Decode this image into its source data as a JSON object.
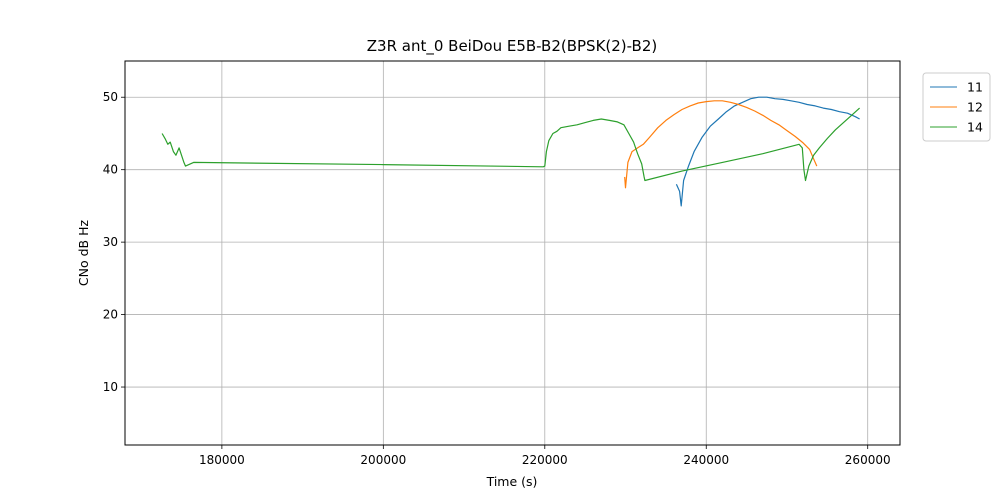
{
  "chart_data": {
    "type": "line",
    "title": "Z3R ant_0 BeiDou E5B-B2(BPSK(2)-B2)",
    "xlabel": "Time (s)",
    "ylabel": "CNo dB Hz",
    "xlim": [
      168000,
      264000
    ],
    "ylim": [
      2,
      55
    ],
    "xticks": [
      180000,
      200000,
      220000,
      240000,
      260000
    ],
    "yticks": [
      10,
      20,
      30,
      40,
      50
    ],
    "grid": true,
    "legend_position": "outside-top-right",
    "series": [
      {
        "name": "11",
        "color": "#1f77b4",
        "points": [
          [
            236300,
            38.0
          ],
          [
            236700,
            37.0
          ],
          [
            236900,
            35.0
          ],
          [
            237200,
            38.5
          ],
          [
            237800,
            40.5
          ],
          [
            238500,
            42.5
          ],
          [
            239500,
            44.5
          ],
          [
            240500,
            46.0
          ],
          [
            241500,
            47.0
          ],
          [
            242500,
            48.0
          ],
          [
            243500,
            48.8
          ],
          [
            244500,
            49.3
          ],
          [
            245500,
            49.8
          ],
          [
            246500,
            50.0
          ],
          [
            247500,
            50.0
          ],
          [
            248500,
            49.8
          ],
          [
            249500,
            49.7
          ],
          [
            250500,
            49.5
          ],
          [
            251500,
            49.3
          ],
          [
            252500,
            49.0
          ],
          [
            253500,
            48.8
          ],
          [
            254500,
            48.5
          ],
          [
            255500,
            48.3
          ],
          [
            256500,
            48.0
          ],
          [
            257500,
            47.8
          ],
          [
            258500,
            47.3
          ],
          [
            259000,
            47.0
          ]
        ]
      },
      {
        "name": "12",
        "color": "#ff7f0e",
        "points": [
          [
            229900,
            39.0
          ],
          [
            230000,
            37.5
          ],
          [
            230300,
            41.0
          ],
          [
            230800,
            42.5
          ],
          [
            231500,
            43.0
          ],
          [
            232200,
            43.5
          ],
          [
            233000,
            44.5
          ],
          [
            234000,
            45.8
          ],
          [
            235000,
            46.8
          ],
          [
            236000,
            47.6
          ],
          [
            237000,
            48.3
          ],
          [
            238000,
            48.8
          ],
          [
            239000,
            49.2
          ],
          [
            240000,
            49.4
          ],
          [
            241000,
            49.5
          ],
          [
            242000,
            49.5
          ],
          [
            243000,
            49.3
          ],
          [
            244000,
            49.0
          ],
          [
            245000,
            48.6
          ],
          [
            246000,
            48.1
          ],
          [
            247000,
            47.5
          ],
          [
            248000,
            46.8
          ],
          [
            249000,
            46.2
          ],
          [
            250000,
            45.4
          ],
          [
            251000,
            44.6
          ],
          [
            252000,
            43.7
          ],
          [
            252800,
            42.8
          ],
          [
            253300,
            41.5
          ],
          [
            253700,
            40.5
          ]
        ]
      },
      {
        "name": "14",
        "color": "#2ca02c",
        "points": [
          [
            172600,
            45.0
          ],
          [
            173000,
            44.2
          ],
          [
            173300,
            43.5
          ],
          [
            173600,
            43.8
          ],
          [
            174000,
            42.5
          ],
          [
            174300,
            42.0
          ],
          [
            174700,
            43.0
          ],
          [
            175000,
            42.0
          ],
          [
            175300,
            41.0
          ],
          [
            175500,
            40.5
          ],
          [
            176500,
            41.0
          ],
          [
            200000,
            40.7
          ],
          [
            219800,
            40.4
          ],
          [
            220000,
            40.5
          ],
          [
            220200,
            42.5
          ],
          [
            220500,
            44.0
          ],
          [
            221000,
            45.0
          ],
          [
            221500,
            45.3
          ],
          [
            222000,
            45.8
          ],
          [
            223000,
            46.0
          ],
          [
            224000,
            46.2
          ],
          [
            225000,
            46.5
          ],
          [
            226000,
            46.8
          ],
          [
            227000,
            47.0
          ],
          [
            228000,
            46.8
          ],
          [
            229000,
            46.6
          ],
          [
            229800,
            46.2
          ],
          [
            230400,
            45.0
          ],
          [
            231000,
            43.8
          ],
          [
            231500,
            42.2
          ],
          [
            232000,
            40.8
          ],
          [
            232300,
            39.0
          ],
          [
            232400,
            38.5
          ],
          [
            237000,
            39.8
          ],
          [
            242000,
            41.0
          ],
          [
            247000,
            42.2
          ],
          [
            251500,
            43.5
          ],
          [
            251900,
            43.0
          ],
          [
            252100,
            40.0
          ],
          [
            252300,
            38.5
          ],
          [
            252700,
            40.5
          ],
          [
            253300,
            42.0
          ],
          [
            254000,
            43.0
          ],
          [
            255000,
            44.3
          ],
          [
            256000,
            45.5
          ],
          [
            257000,
            46.5
          ],
          [
            258000,
            47.5
          ],
          [
            259000,
            48.5
          ]
        ]
      }
    ]
  }
}
